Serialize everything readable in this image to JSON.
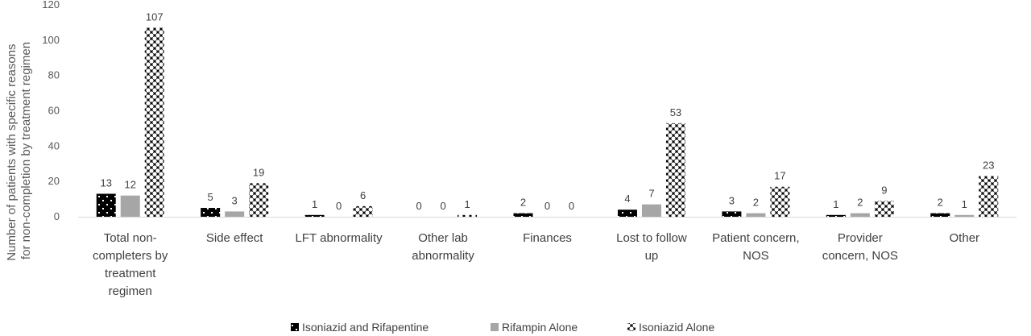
{
  "chart_data": {
    "type": "bar",
    "title": "",
    "xlabel": "",
    "ylabel_lines": [
      "Number of patients with specific reasons",
      "for non-completion by treatment regimen"
    ],
    "ylim": [
      0,
      120
    ],
    "yticks": [
      0,
      20,
      40,
      60,
      80,
      100,
      120
    ],
    "grid": false,
    "legend_position": "bottom",
    "categories": [
      [
        "Total non-",
        "completers by",
        "treatment",
        "regimen"
      ],
      [
        "Side effect"
      ],
      [
        "LFT abnormality"
      ],
      [
        "Other lab",
        "abnormality"
      ],
      [
        "Finances"
      ],
      [
        "Lost to follow",
        "up"
      ],
      [
        "Patient concern,",
        "NOS"
      ],
      [
        "Provider",
        "concern, NOS"
      ],
      [
        "Other"
      ]
    ],
    "series": [
      {
        "name": "Isoniazid and Rifapentine",
        "pattern": "dots-on-black",
        "color": "#000000",
        "values": [
          13,
          5,
          1,
          0,
          2,
          4,
          3,
          1,
          2
        ]
      },
      {
        "name": "Rifampin Alone",
        "pattern": "solid",
        "color": "#a6a6a6",
        "values": [
          12,
          3,
          0,
          0,
          0,
          7,
          2,
          2,
          1
        ]
      },
      {
        "name": "Isoniazid Alone",
        "pattern": "checker",
        "color": "#000000",
        "values": [
          107,
          19,
          6,
          1,
          0,
          53,
          17,
          9,
          23
        ]
      }
    ]
  }
}
